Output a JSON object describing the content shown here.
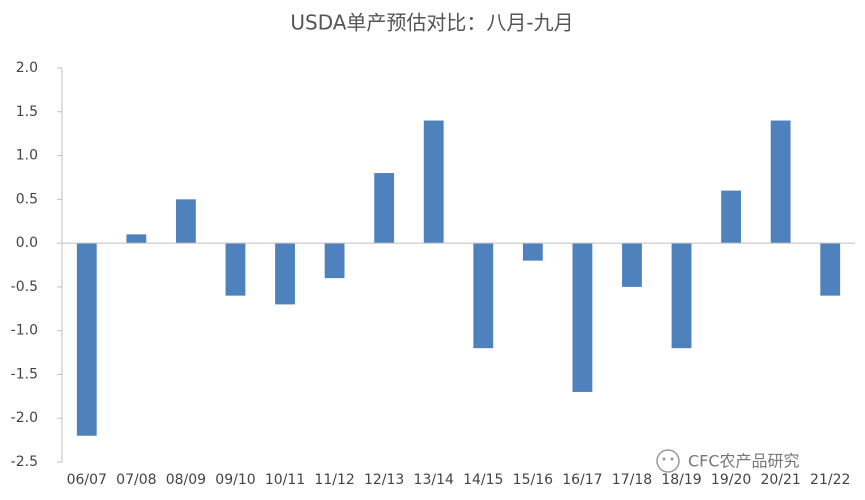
{
  "chart_data": {
    "type": "bar",
    "title": "USDA单产预估对比：八月-九月",
    "categories": [
      "06/07",
      "07/08",
      "08/09",
      "09/10",
      "10/11",
      "11/12",
      "12/13",
      "13/14",
      "14/15",
      "15/16",
      "16/17",
      "17/18",
      "18/19",
      "19/20",
      "20/21",
      "21/22"
    ],
    "values": [
      -2.2,
      0.1,
      0.5,
      -0.6,
      -0.7,
      -0.4,
      0.8,
      1.4,
      -1.2,
      -0.2,
      -1.7,
      -0.5,
      -1.2,
      0.6,
      1.4,
      -0.6
    ],
    "color": "#4f81bd",
    "ylim": [
      -2.5,
      2.0
    ],
    "yticks": [
      -2.5,
      {
        "value": -2,
        "label": "-2.0"
      },
      -1.5,
      {
        "value": -1,
        "label": "-1.0"
      },
      -0.5,
      {
        "value": 0,
        "label": "0.0"
      },
      0.5,
      {
        "value": 1,
        "label": "1.0"
      },
      1.5,
      {
        "value": 2,
        "label": "2.0"
      }
    ],
    "grid": false,
    "watermark": "CFC农产品研究"
  }
}
